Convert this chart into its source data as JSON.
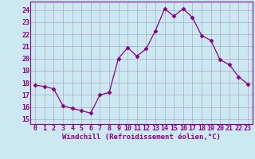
{
  "x": [
    0,
    1,
    2,
    3,
    4,
    5,
    6,
    7,
    8,
    9,
    10,
    11,
    12,
    13,
    14,
    15,
    16,
    17,
    18,
    19,
    20,
    21,
    22,
    23
  ],
  "y": [
    17.8,
    17.7,
    17.5,
    16.1,
    15.9,
    15.7,
    15.5,
    17.0,
    17.2,
    20.0,
    20.9,
    20.2,
    20.8,
    22.3,
    24.1,
    23.5,
    24.1,
    23.4,
    21.9,
    21.5,
    19.9,
    19.5,
    18.5,
    17.9
  ],
  "line_color": "#880088",
  "marker": "D",
  "marker_size": 2.5,
  "bg_color": "#cce8f0",
  "grid_color": "#aaaacc",
  "xlabel": "Windchill (Refroidissement éolien,°C)",
  "ylabel_values": [
    15,
    16,
    17,
    18,
    19,
    20,
    21,
    22,
    23,
    24
  ],
  "ylim": [
    14.6,
    24.7
  ],
  "xlim": [
    -0.5,
    23.5
  ],
  "xlabel_fontsize": 6.5,
  "tick_fontsize": 6.0
}
